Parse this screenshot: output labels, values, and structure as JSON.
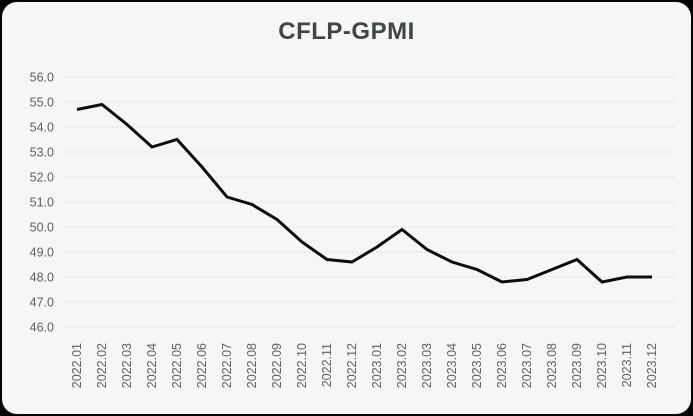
{
  "window": {
    "title": "CFLP-GPMI"
  },
  "colors": {
    "panel_background": "#f6f6f4",
    "outer_frame": "#050505",
    "title_text": "#3d4649",
    "tick_text": "#606060",
    "gridline": "#d2e0df",
    "data_line": "#0d0d0d"
  },
  "chart_data": {
    "type": "line",
    "title": "CFLP-GPMI",
    "xlabel": "",
    "ylabel": "",
    "legend": "none",
    "grid": "horizontal-dashed",
    "ylim": [
      46.0,
      56.0
    ],
    "ytick_step": 1.0,
    "ytick_labels": [
      "56.0",
      "55.0",
      "54.0",
      "53.0",
      "52.0",
      "51.0",
      "50.0",
      "49.0",
      "48.0",
      "47.0",
      "46.0"
    ],
    "categories": [
      "2022.01",
      "2022.02",
      "2022.03",
      "2022.04",
      "2022.05",
      "2022.06",
      "2022.07",
      "2022.08",
      "2022.09",
      "2022.10",
      "2022.11",
      "2022.12",
      "2023.01",
      "2023.02",
      "2023.03",
      "2023.04",
      "2023.05",
      "2023.06",
      "2023.07",
      "2023.08",
      "2023.09",
      "2023.10",
      "2023.11",
      "2023.12"
    ],
    "values": [
      54.7,
      54.9,
      54.1,
      53.2,
      53.5,
      52.4,
      51.2,
      50.9,
      50.3,
      49.4,
      48.7,
      48.6,
      49.2,
      49.9,
      49.1,
      48.6,
      48.3,
      47.8,
      47.9,
      48.3,
      48.7,
      47.8,
      48.0,
      48.0
    ]
  }
}
